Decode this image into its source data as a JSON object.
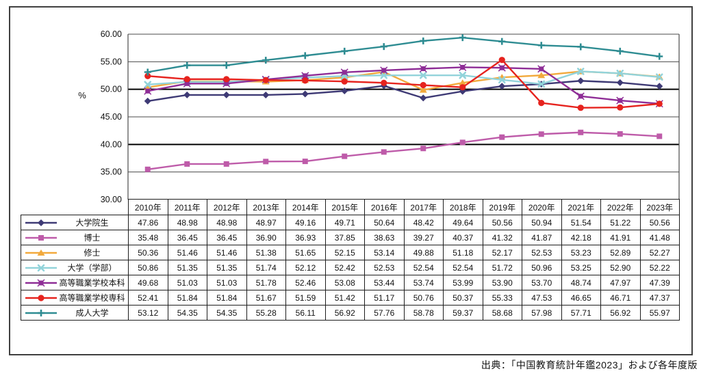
{
  "chart_data": {
    "type": "line",
    "title": "",
    "ylabel": "%",
    "ylim": [
      30,
      60
    ],
    "ytick_step": 5,
    "ytick_labels": [
      "60.00",
      "55.00",
      "50.00",
      "45.00",
      "40.00",
      "35.00",
      "30.00"
    ],
    "grid": true,
    "legend_position": "table-left",
    "categories": [
      "2010年",
      "2011年",
      "2012年",
      "2013年",
      "2014年",
      "2015年",
      "2016年",
      "2017年",
      "2018年",
      "2019年",
      "2020年",
      "2021年",
      "2022年",
      "2023年"
    ],
    "series": [
      {
        "name": "大学院生",
        "color": "#3e3a75",
        "marker": "diamond",
        "values": [
          47.86,
          48.98,
          48.98,
          48.97,
          49.16,
          49.71,
          50.64,
          48.42,
          49.64,
          50.56,
          50.94,
          51.54,
          51.22,
          50.56
        ]
      },
      {
        "name": "博士",
        "color": "#be5ba9",
        "marker": "square",
        "values": [
          35.48,
          36.45,
          36.45,
          36.9,
          36.93,
          37.85,
          38.63,
          39.27,
          40.37,
          41.32,
          41.87,
          42.18,
          41.91,
          41.48
        ]
      },
      {
        "name": "修士",
        "color": "#f2a93c",
        "marker": "triangle",
        "values": [
          50.36,
          51.46,
          51.46,
          51.38,
          51.65,
          52.15,
          53.14,
          49.88,
          51.18,
          52.17,
          52.53,
          53.23,
          52.89,
          52.27
        ]
      },
      {
        "name": "大学（学部）",
        "color": "#92d3da",
        "marker": "x",
        "values": [
          50.86,
          51.35,
          51.35,
          51.74,
          52.12,
          52.42,
          52.53,
          52.54,
          52.54,
          51.72,
          50.96,
          53.25,
          52.9,
          52.22
        ]
      },
      {
        "name": "高等職業学校本科",
        "color": "#8e2d96",
        "marker": "star",
        "values": [
          49.68,
          51.03,
          51.03,
          51.78,
          52.46,
          53.08,
          53.44,
          53.74,
          53.99,
          53.9,
          53.7,
          48.74,
          47.97,
          47.39
        ]
      },
      {
        "name": "高等職業学校専科",
        "color": "#e6231e",
        "marker": "circle",
        "values": [
          52.41,
          51.84,
          51.84,
          51.67,
          51.59,
          51.42,
          51.17,
          50.76,
          50.37,
          55.33,
          47.53,
          46.65,
          46.71,
          47.37
        ]
      },
      {
        "name": "成人大学",
        "color": "#2e8c92",
        "marker": "plus",
        "values": [
          53.12,
          54.35,
          54.35,
          55.28,
          56.11,
          56.92,
          57.76,
          58.78,
          59.37,
          58.68,
          57.98,
          57.71,
          56.92,
          55.97
        ]
      }
    ]
  },
  "footer": {
    "source_note": "出典：「中国教育統計年鑑2023」および各年度版"
  }
}
